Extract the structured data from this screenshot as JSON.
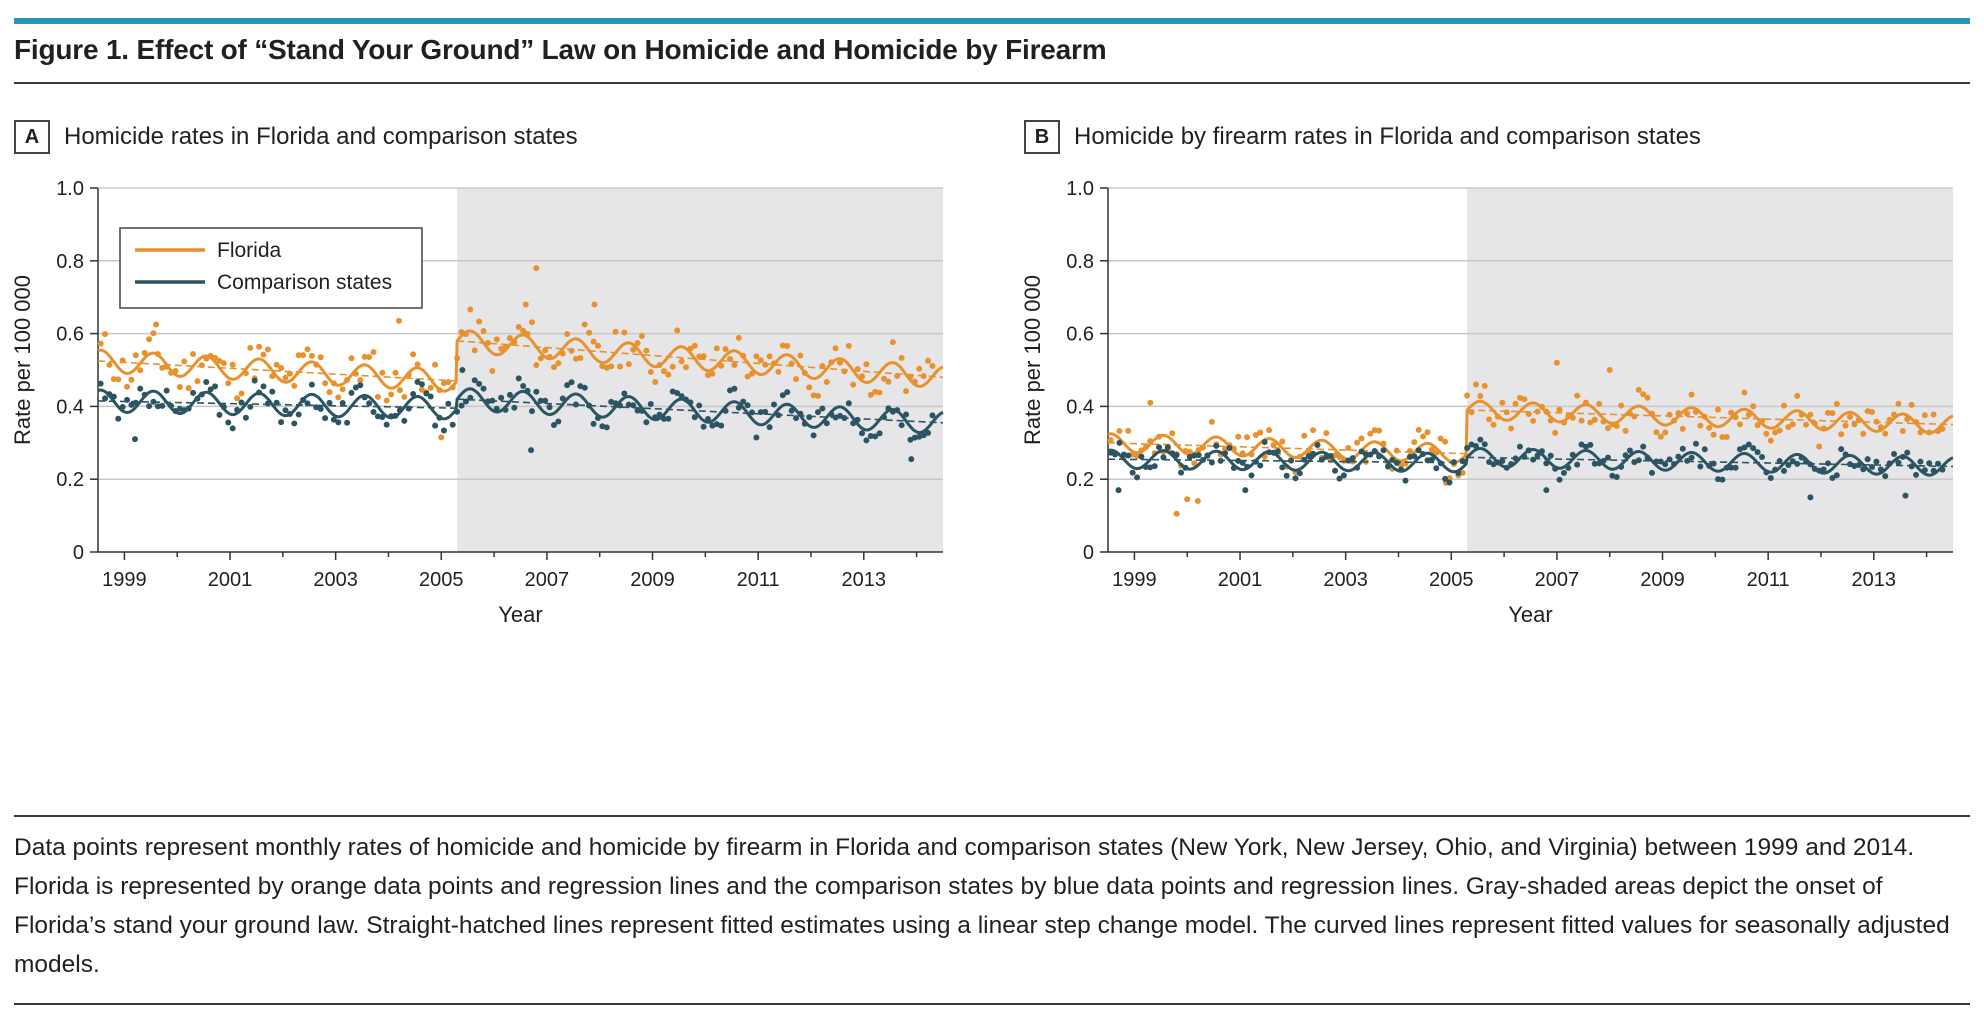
{
  "figure": {
    "title": "Figure 1. Effect of “Stand Your Ground” Law on Homicide and Homicide by Firearm",
    "caption": "Data points represent monthly rates of homicide and homicide by firearm in Florida and comparison states (New York, New Jersey, Ohio, and Virginia) between 1999 and 2014. Florida is represented by orange data points and regression lines and the comparison states by blue data points and regression lines. Gray-shaded areas depict the onset of Florida’s stand your ground law. Straight-hatched lines represent fitted estimates using a linear step change model. The curved lines represent fitted values for seasonally adjusted models."
  },
  "colors": {
    "florida": "#e8912d",
    "comparison": "#2b5563",
    "shade": "#e6e6e9",
    "grid": "#c8c8c8",
    "accent_bar": "#2a95b8"
  },
  "panels": [
    {
      "letter": "A",
      "title": "Homicide rates in Florida and comparison states"
    },
    {
      "letter": "B",
      "title": "Homicide by firearm rates in Florida and comparison states"
    }
  ],
  "chart_data": [
    {
      "type": "scatter",
      "panel": "A",
      "title": "Homicide rates in Florida and comparison states",
      "xlabel": "Year",
      "ylabel": "Rate per 100 000",
      "xlim": [
        1998.5,
        2014.5
      ],
      "ylim": [
        0,
        1.0
      ],
      "xticks": [
        "1999",
        "2001",
        "2003",
        "2005",
        "2007",
        "2009",
        "2011",
        "2013"
      ],
      "yticks": [
        "0",
        "0.2",
        "0.4",
        "0.6",
        "0.8",
        "1.0"
      ],
      "grid": true,
      "shaded_region": [
        2005.3,
        2014.5
      ],
      "legend": {
        "position": "top-left",
        "entries": [
          "Florida",
          "Comparison states"
        ]
      },
      "series": [
        {
          "name": "Florida",
          "step_model": {
            "pre": [
              [
                1998.5,
                0.525
              ],
              [
                2005.3,
                0.47
              ]
            ],
            "post": [
              [
                2005.3,
                0.58
              ],
              [
                2014.5,
                0.48
              ]
            ]
          },
          "seasonal_amplitude": 0.03,
          "scatter_spread": 0.06,
          "outliers": [
            [
              2006.8,
              0.78
            ],
            [
              2006.6,
              0.68
            ],
            [
              2007.9,
              0.68
            ],
            [
              2004.2,
              0.635
            ],
            [
              1999.6,
              0.625
            ],
            [
              2005.0,
              0.315
            ]
          ]
        },
        {
          "name": "Comparison states",
          "step_model": {
            "pre": [
              [
                1998.5,
                0.415
              ],
              [
                2005.3,
                0.395
              ]
            ],
            "post": [
              [
                2005.3,
                0.42
              ],
              [
                2014.5,
                0.355
              ]
            ]
          },
          "seasonal_amplitude": 0.03,
          "scatter_spread": 0.04,
          "outliers": [
            [
              1999.2,
              0.31
            ],
            [
              2006.7,
              0.28
            ],
            [
              2013.9,
              0.255
            ],
            [
              2005.4,
              0.5
            ]
          ]
        }
      ]
    },
    {
      "type": "scatter",
      "panel": "B",
      "title": "Homicide by firearm rates in Florida and comparison states",
      "xlabel": "Year",
      "ylabel": "Rate per 100 000",
      "xlim": [
        1998.5,
        2014.5
      ],
      "ylim": [
        0,
        1.0
      ],
      "xticks": [
        "1999",
        "2001",
        "2003",
        "2005",
        "2007",
        "2009",
        "2011",
        "2013"
      ],
      "yticks": [
        "0",
        "0.2",
        "0.4",
        "0.6",
        "0.8",
        "1.0"
      ],
      "grid": true,
      "shaded_region": [
        2005.3,
        2014.5
      ],
      "legend": null,
      "series": [
        {
          "name": "Florida",
          "step_model": {
            "pre": [
              [
                1998.5,
                0.3
              ],
              [
                2005.3,
                0.27
              ]
            ],
            "post": [
              [
                2005.3,
                0.39
              ],
              [
                2014.5,
                0.35
              ]
            ]
          },
          "seasonal_amplitude": 0.025,
          "scatter_spread": 0.05,
          "outliers": [
            [
              1999.8,
              0.105
            ],
            [
              2000.0,
              0.145
            ],
            [
              2000.2,
              0.14
            ],
            [
              1999.3,
              0.41
            ],
            [
              2007.0,
              0.52
            ],
            [
              2008.0,
              0.5
            ],
            [
              2004.9,
              0.19
            ]
          ]
        },
        {
          "name": "Comparison states",
          "step_model": {
            "pre": [
              [
                1998.5,
                0.255
              ],
              [
                2005.3,
                0.245
              ]
            ],
            "post": [
              [
                2005.3,
                0.26
              ],
              [
                2014.5,
                0.235
              ]
            ]
          },
          "seasonal_amplitude": 0.025,
          "scatter_spread": 0.035,
          "outliers": [
            [
              1998.7,
              0.17
            ],
            [
              2001.1,
              0.17
            ],
            [
              2006.8,
              0.17
            ],
            [
              2011.8,
              0.15
            ],
            [
              2013.6,
              0.155
            ]
          ]
        }
      ]
    }
  ]
}
